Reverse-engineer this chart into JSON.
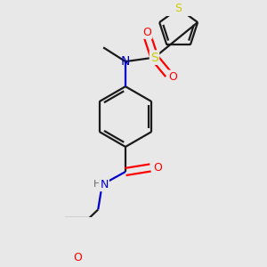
{
  "background_color": "#e8e8e8",
  "bond_color": "#1a1a1a",
  "S_color": "#cccc00",
  "N_color": "#0000cc",
  "O_color": "#ff0000",
  "line_width": 1.6,
  "figsize": [
    3.0,
    3.0
  ],
  "dpi": 100,
  "xlim": [
    -1.8,
    2.2
  ],
  "ylim": [
    -2.8,
    2.2
  ]
}
